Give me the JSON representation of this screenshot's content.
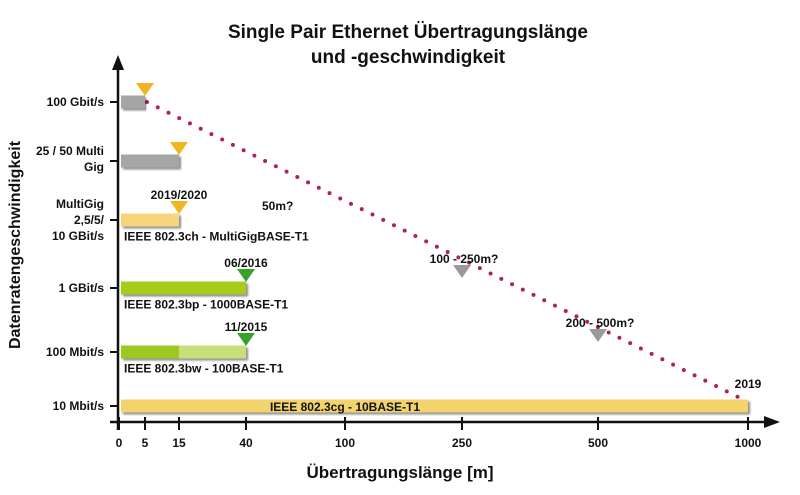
{
  "chart_data": {
    "type": "bar",
    "title_line1": "Single Pair Ethernet Übertragungslänge",
    "title_line2": "und -geschwindigkeit",
    "xlabel": "Übertragungslänge [m]",
    "ylabel": "Datenratengeschwindigkeit",
    "x_ticks": [
      0,
      5,
      15,
      40,
      100,
      250,
      500,
      1000
    ],
    "x_ticks_labels": [
      "0",
      "5",
      "15",
      "40",
      "100",
      "250",
      "500",
      "1000"
    ],
    "y_categories": [
      {
        "label": [
          "100 Gbit/s"
        ]
      },
      {
        "label": [
          "25 / 50 Multi",
          "Gig"
        ]
      },
      {
        "label": [
          "MultiGig",
          "2,5/5/",
          "10 GBit/s"
        ]
      },
      {
        "label": [
          "1 GBit/s"
        ]
      },
      {
        "label": [
          "100 Mbit/s"
        ]
      },
      {
        "label": [
          "10 Mbit/s"
        ]
      }
    ],
    "series": [
      {
        "row": 0,
        "solid_to": 5,
        "color": "#a6a6a6",
        "marker": 5,
        "marker_color": "#f0b521"
      },
      {
        "row": 1,
        "solid_to": 15,
        "color": "#a6a6a6",
        "marker": 15,
        "marker_color": "#f0b521"
      },
      {
        "row": 2,
        "solid_to": 15,
        "color": "#f6d67c",
        "marker": 15,
        "marker_color": "#f0b521",
        "dashed_to": 50,
        "name": "IEEE 802.3ch - MultiGigBASE-T1",
        "date": "2019/2020",
        "range_label": "50m?"
      },
      {
        "row": 3,
        "solid_to": 40,
        "color": "#a7cd1d",
        "marker": 40,
        "marker_color": "#3aa02c",
        "dashed_to": 250,
        "end_marker_color": "#9a9a9a",
        "name": "IEEE 802.3bp - 1000BASE-T1",
        "date": "06/2016",
        "range_label": "100 - 250m?"
      },
      {
        "row": 4,
        "solid_to": 40,
        "split_at": 15,
        "color": "#9fc820",
        "color2": "#c9e07a",
        "marker": 40,
        "marker_color": "#3aa02c",
        "dashed_to": 500,
        "end_marker_color": "#9a9a9a",
        "name": "IEEE 802.3bw - 100BASE-T1",
        "date": "11/2015",
        "range_label": "200 - 500m?"
      },
      {
        "row": 5,
        "solid_to": 1000,
        "color": "#f3d46c",
        "name": "IEEE 802.3cg - 10BASE-T1",
        "date": "2019"
      }
    ],
    "trend_line": {
      "from": 5,
      "to": 1000,
      "color": "#b01e68",
      "style": "dotted"
    }
  }
}
